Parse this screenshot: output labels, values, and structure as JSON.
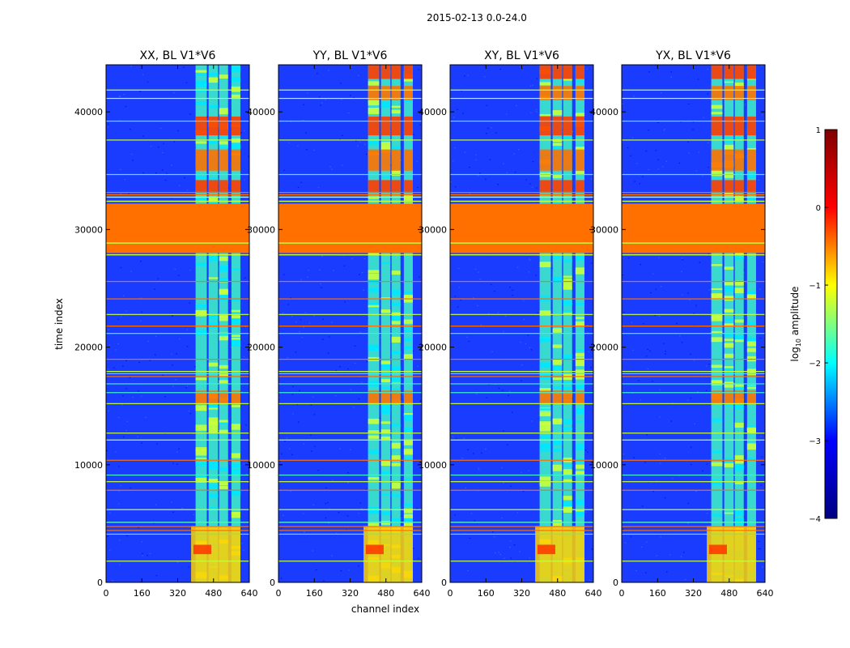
{
  "figure": {
    "suptitle": "2015-02-13 0.0-24.0",
    "xlabel": "channel index",
    "ylabel": "time index"
  },
  "chart_data": {
    "type": "heatmap",
    "panels": [
      {
        "title": "XX, BL V1*V6"
      },
      {
        "title": "YY, BL V1*V6"
      },
      {
        "title": "XY, BL V1*V6"
      },
      {
        "title": "YX, BL V1*V6"
      }
    ],
    "xlim": [
      0,
      640
    ],
    "ylim": [
      0,
      44000
    ],
    "xticks": [
      0,
      160,
      320,
      480,
      640
    ],
    "yticks": [
      0,
      10000,
      20000,
      30000,
      40000
    ],
    "ytick_labels": [
      "0",
      "10000",
      "20000",
      "30000",
      "40000"
    ],
    "colormap": "jet",
    "colors": {
      "background": "#1a3cff",
      "flagged": "#ff7000",
      "stop_0": "#00007f",
      "stop_1": "#0000ff",
      "stop_2": "#00ffff",
      "stop_3": "#ffff00",
      "stop_4": "#ff0000",
      "stop_5": "#7f0000"
    },
    "colorbar": {
      "label": "log10 amplitude",
      "label_main": "log",
      "label_sub": "10",
      "label_rest": " amplitude",
      "ticks": [
        1,
        0,
        -1,
        -2,
        -3,
        -4
      ],
      "tick_labels": [
        "1",
        "0",
        "−1",
        "−2",
        "−3",
        "−4"
      ],
      "vmin": -4,
      "vmax": 1
    },
    "flagged_time_range": [
      28000,
      32200
    ],
    "rfi_channel_bands": [
      {
        "start": 400,
        "end": 450
      },
      {
        "start": 458,
        "end": 500
      },
      {
        "start": 505,
        "end": 545
      },
      {
        "start": 560,
        "end": 600
      }
    ]
  }
}
